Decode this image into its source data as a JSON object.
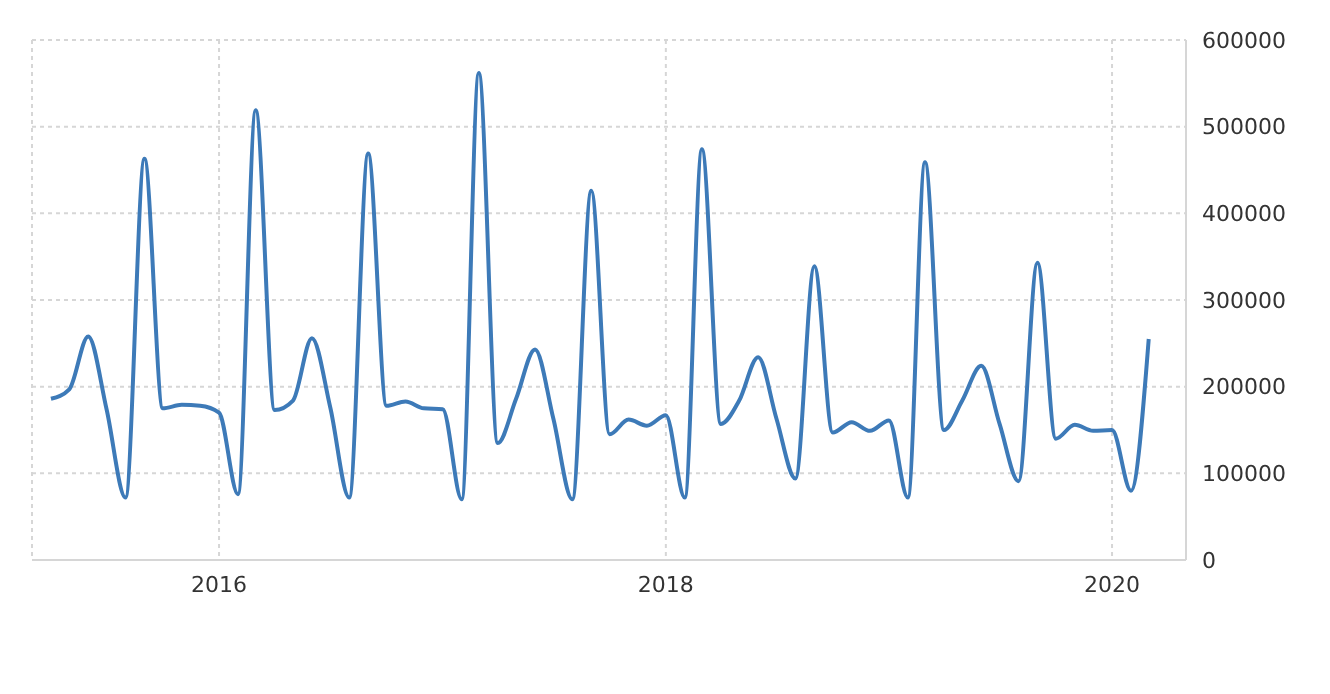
{
  "chart_data": {
    "type": "line",
    "x": [
      "2015-04",
      "2015-05",
      "2015-06",
      "2015-07",
      "2015-08",
      "2015-09",
      "2015-10",
      "2015-11",
      "2015-12",
      "2016-01",
      "2016-02",
      "2016-03",
      "2016-04",
      "2016-05",
      "2016-06",
      "2016-07",
      "2016-08",
      "2016-09",
      "2016-10",
      "2016-11",
      "2016-12",
      "2017-01",
      "2017-02",
      "2017-03",
      "2017-04",
      "2017-05",
      "2017-06",
      "2017-07",
      "2017-08",
      "2017-09",
      "2017-10",
      "2017-11",
      "2017-12",
      "2018-01",
      "2018-02",
      "2018-03",
      "2018-04",
      "2018-05",
      "2018-06",
      "2018-07",
      "2018-08",
      "2018-09",
      "2018-10",
      "2018-11",
      "2018-12",
      "2019-01",
      "2019-02",
      "2019-03",
      "2019-04",
      "2019-05",
      "2019-06",
      "2019-07",
      "2019-08",
      "2019-09",
      "2019-10",
      "2019-11",
      "2019-12",
      "2020-01",
      "2020-02",
      "2020-03"
    ],
    "series": [
      {
        "color": "#3d7ab8",
        "values": [
          186000,
          197000,
          258000,
          174000,
          72000,
          463000,
          175000,
          179000,
          178000,
          170000,
          76000,
          519000,
          173000,
          184000,
          256000,
          176000,
          72000,
          469000,
          178000,
          183000,
          175000,
          174000,
          70000,
          562000,
          135000,
          186000,
          243000,
          163000,
          70000,
          426000,
          145000,
          162000,
          155000,
          167000,
          72000,
          474000,
          157000,
          184000,
          234000,
          163000,
          94000,
          339000,
          147000,
          159000,
          149000,
          161000,
          72000,
          459000,
          150000,
          184000,
          224000,
          157000,
          91000,
          343000,
          140000,
          156000,
          149000,
          150000,
          80000,
          255000
        ]
      }
    ],
    "xlim": [
      "2015-03",
      "2020-05"
    ],
    "xticks": [
      {
        "value": "2016",
        "label": "2016"
      },
      {
        "value": "2018",
        "label": "2018"
      },
      {
        "value": "2020",
        "label": "2020"
      }
    ],
    "ylim": [
      0,
      600000
    ],
    "yticks": [
      0,
      100000,
      200000,
      300000,
      400000,
      500000,
      600000
    ],
    "grid": true,
    "legend": false,
    "marker": "none",
    "line_style": "solid"
  }
}
